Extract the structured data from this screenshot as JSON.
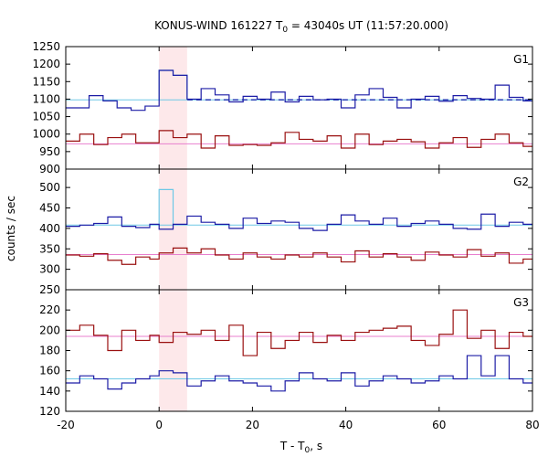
{
  "chart_data": {
    "type": "line",
    "title_main": "KONUS-WIND 161227 T",
    "title_sub": "0",
    "title_rest": " = 43040s UT (11:57:20.000)",
    "ylabel": "counts / sec",
    "xlabel_main": "T - T",
    "xlabel_sub": "0",
    "xlabel_rest": ", s",
    "xlim": [
      -20,
      80
    ],
    "x_ticks": [
      "-20",
      "0",
      "20",
      "40",
      "60",
      "80"
    ],
    "x_tick_values": [
      -20,
      0,
      20,
      40,
      60,
      80
    ],
    "highlight_interval": [
      0,
      6
    ],
    "colors": {
      "blue": "#1c1ca6",
      "red": "#9a1010",
      "cyan": "#6ec8e6",
      "pink": "#e87fcf",
      "dashed": "#1a2bb0",
      "highlight": "#fde8ea"
    },
    "panels": [
      {
        "name": "G1",
        "ylim": [
          900,
          1250
        ],
        "y_ticks": [
          900,
          950,
          1000,
          1050,
          1100,
          1150,
          1200,
          1250
        ],
        "y_tick_labels": [
          "900",
          "950",
          "1000",
          "1050",
          "1100",
          "1150",
          "1200",
          "1250"
        ],
        "series": [
          {
            "color_key": "blue",
            "edges": [
              -20,
              -15,
              -12,
              -9,
              -6,
              -3,
              0,
              3,
              6,
              9,
              12,
              15,
              18,
              21,
              24,
              27,
              30,
              33,
              36,
              39,
              42,
              45,
              48,
              51,
              54,
              57,
              60,
              63,
              66,
              69,
              72,
              75,
              78,
              80
            ],
            "values": [
              1075,
              1110,
              1095,
              1075,
              1068,
              1080,
              1182,
              1168,
              1100,
              1130,
              1112,
              1092,
              1108,
              1100,
              1120,
              1092,
              1108,
              1098,
              1100,
              1075,
              1112,
              1130,
              1105,
              1075,
              1100,
              1108,
              1094,
              1110,
              1102,
              1100,
              1140,
              1105,
              1095
            ]
          },
          {
            "color_key": "red",
            "edges": [
              -20,
              -17,
              -14,
              -11,
              -8,
              -5,
              -2,
              0,
              3,
              6,
              9,
              12,
              15,
              18,
              21,
              24,
              27,
              30,
              33,
              36,
              39,
              42,
              45,
              48,
              51,
              54,
              57,
              60,
              63,
              66,
              69,
              72,
              75,
              78,
              80
            ],
            "values": [
              980,
              1000,
              970,
              990,
              1000,
              975,
              975,
              1010,
              990,
              1000,
              960,
              995,
              968,
              970,
              968,
              975,
              1005,
              985,
              980,
              995,
              960,
              1000,
              970,
              980,
              985,
              978,
              960,
              975,
              990,
              962,
              985,
              1000,
              975,
              965
            ]
          }
        ],
        "refs": [
          {
            "color_key": "cyan",
            "y": 1098,
            "x0": -20,
            "x1": 80,
            "dashed": false
          },
          {
            "color_key": "dashed",
            "y": 1098,
            "x0": 6,
            "x1": 80,
            "dashed": true
          },
          {
            "color_key": "pink",
            "y": 972,
            "x0": -20,
            "x1": 80,
            "dashed": false
          }
        ],
        "spike": {
          "color_key": "cyan",
          "x0": 0,
          "x1": 6,
          "values": [
            1182,
            1168
          ]
        }
      },
      {
        "name": "G2",
        "ylim": [
          250,
          545
        ],
        "y_ticks": [
          250,
          300,
          350,
          400,
          450,
          500
        ],
        "y_tick_labels": [
          "250",
          "300",
          "350",
          "400",
          "450",
          "500"
        ],
        "series": [
          {
            "color_key": "blue",
            "edges": [
              -20,
              -17,
              -14,
              -11,
              -8,
              -5,
              -2,
              0,
              3,
              6,
              9,
              12,
              15,
              18,
              21,
              24,
              27,
              30,
              33,
              36,
              39,
              42,
              45,
              48,
              51,
              54,
              57,
              60,
              63,
              66,
              69,
              72,
              75,
              78,
              80
            ],
            "values": [
              405,
              408,
              412,
              428,
              405,
              402,
              410,
              398,
              410,
              430,
              415,
              410,
              400,
              425,
              412,
              418,
              415,
              400,
              395,
              410,
              433,
              418,
              410,
              425,
              405,
              412,
              418,
              410,
              400,
              398,
              435,
              405,
              415,
              410
            ]
          },
          {
            "color_key": "red",
            "edges": [
              -20,
              -17,
              -14,
              -11,
              -8,
              -5,
              -2,
              0,
              3,
              6,
              9,
              12,
              15,
              18,
              21,
              24,
              27,
              30,
              33,
              36,
              39,
              42,
              45,
              48,
              51,
              54,
              57,
              60,
              63,
              66,
              69,
              72,
              75,
              78,
              80
            ],
            "values": [
              335,
              332,
              338,
              322,
              312,
              330,
              325,
              340,
              352,
              340,
              350,
              335,
              325,
              340,
              330,
              325,
              335,
              330,
              340,
              330,
              318,
              345,
              330,
              338,
              330,
              322,
              342,
              335,
              330,
              348,
              332,
              340,
              315,
              325
            ]
          }
        ],
        "refs": [
          {
            "color_key": "cyan",
            "y": 408,
            "x0": -20,
            "x1": 80,
            "dashed": false
          },
          {
            "color_key": "pink",
            "y": 336,
            "x0": -20,
            "x1": 80,
            "dashed": false
          }
        ],
        "spike": {
          "color_key": "cyan",
          "x0": 0,
          "x1": 3,
          "values": [
            495
          ]
        }
      },
      {
        "name": "G3",
        "ylim": [
          120,
          240
        ],
        "y_ticks": [
          120,
          140,
          160,
          180,
          200,
          220
        ],
        "y_tick_labels": [
          "120",
          "140",
          "160",
          "180",
          "200",
          "220"
        ],
        "series": [
          {
            "color_key": "red",
            "edges": [
              -20,
              -17,
              -14,
              -11,
              -8,
              -5,
              -2,
              0,
              3,
              6,
              9,
              12,
              15,
              18,
              21,
              24,
              27,
              30,
              33,
              36,
              39,
              42,
              45,
              48,
              51,
              54,
              57,
              60,
              63,
              66,
              69,
              72,
              75,
              78,
              80
            ],
            "values": [
              200,
              205,
              195,
              180,
              200,
              190,
              195,
              188,
              198,
              196,
              200,
              190,
              205,
              175,
              198,
              182,
              190,
              198,
              188,
              195,
              190,
              198,
              200,
              202,
              204,
              190,
              185,
              196,
              220,
              192,
              200,
              182,
              198,
              194
            ]
          },
          {
            "color_key": "blue",
            "edges": [
              -20,
              -17,
              -14,
              -11,
              -8,
              -5,
              -2,
              0,
              3,
              6,
              9,
              12,
              15,
              18,
              21,
              24,
              27,
              30,
              33,
              36,
              39,
              42,
              45,
              48,
              51,
              54,
              57,
              60,
              63,
              66,
              69,
              72,
              75,
              78,
              80
            ],
            "values": [
              148,
              155,
              152,
              142,
              148,
              152,
              155,
              160,
              158,
              145,
              150,
              155,
              150,
              148,
              145,
              140,
              150,
              158,
              152,
              150,
              158,
              145,
              150,
              155,
              152,
              148,
              150,
              155,
              152,
              175,
              155,
              175,
              152,
              148
            ]
          }
        ],
        "refs": [
          {
            "color_key": "pink",
            "y": 194,
            "x0": -20,
            "x1": 80,
            "dashed": false
          },
          {
            "color_key": "cyan",
            "y": 152,
            "x0": -20,
            "x1": 80,
            "dashed": false
          }
        ],
        "spike": null
      }
    ]
  }
}
